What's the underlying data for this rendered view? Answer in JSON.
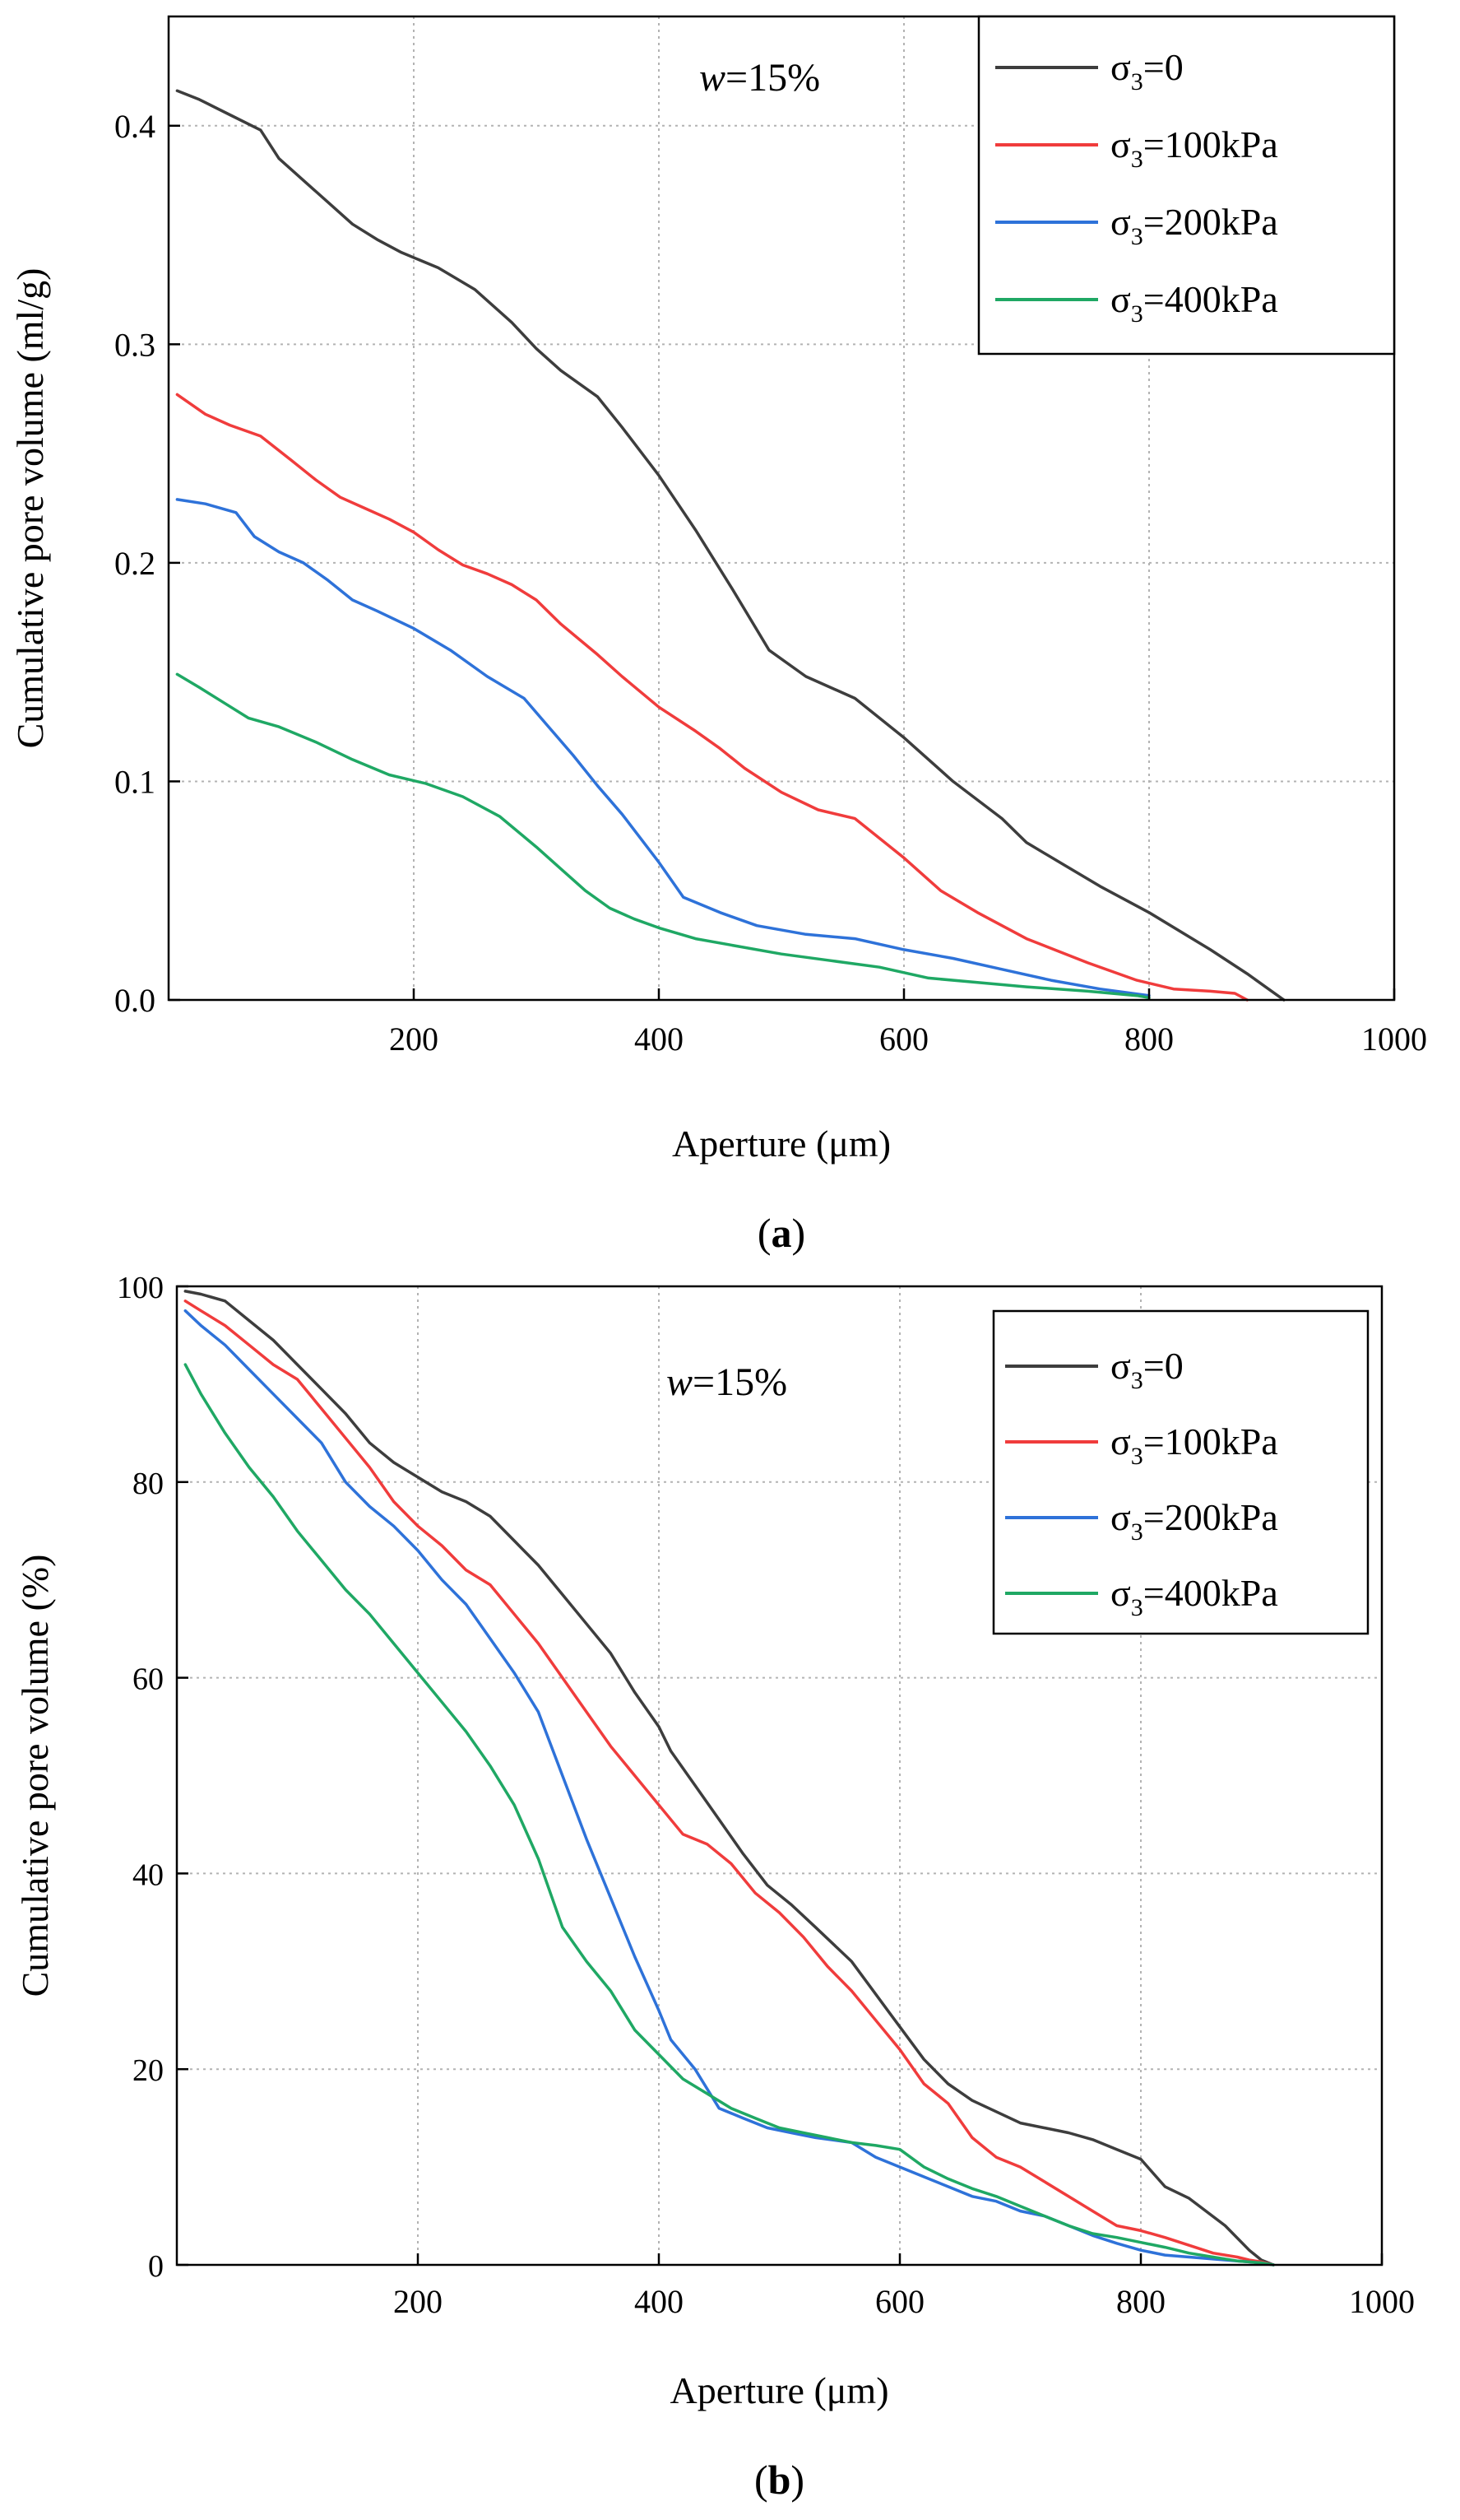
{
  "colors": {
    "s0": "#3d3d3d",
    "s100": "#f03c3c",
    "s200": "#2e72d9",
    "s400": "#1fa864",
    "grid": "#b3b3b3",
    "axis": "#000000"
  },
  "chart_data": [
    {
      "type": "line",
      "panel_label": "a",
      "annotation": {
        "w_sym": "w",
        "w_val": "=15%"
      },
      "xlabel": "Aperture (μm)",
      "ylabel": "Cumulative pore volume (ml/g)",
      "xlim": [
        0,
        1000
      ],
      "ylim": [
        0,
        0.45
      ],
      "xticks": [
        200,
        400,
        600,
        800,
        1000
      ],
      "xtick_labels": [
        "200",
        "400",
        "600",
        "800",
        "1000"
      ],
      "yticks": [
        0,
        0.1,
        0.2,
        0.3,
        0.4
      ],
      "ytick_labels": [
        "0.0",
        "0.1",
        "0.2",
        "0.3",
        "0.4"
      ],
      "grid": true,
      "legend_position": "top-right",
      "series": [
        {
          "name": "σ₃=0",
          "label": {
            "sym": "σ",
            "sub": "3",
            "rest": "=0"
          },
          "color_key": "s0",
          "x": [
            7,
            25,
            50,
            75,
            90,
            110,
            130,
            150,
            170,
            190,
            220,
            250,
            280,
            300,
            320,
            350,
            370,
            400,
            430,
            460,
            490,
            520,
            560,
            600,
            640,
            680,
            700,
            730,
            760,
            800,
            850,
            880,
            900,
            910
          ],
          "y": [
            0.416,
            0.412,
            0.405,
            0.398,
            0.385,
            0.375,
            0.365,
            0.355,
            0.348,
            0.342,
            0.335,
            0.325,
            0.31,
            0.298,
            0.288,
            0.276,
            0.262,
            0.24,
            0.215,
            0.188,
            0.16,
            0.148,
            0.138,
            0.12,
            0.1,
            0.083,
            0.072,
            0.062,
            0.052,
            0.04,
            0.023,
            0.012,
            0.004,
            0.0
          ]
        },
        {
          "name": "σ₃=100kPa",
          "label": {
            "sym": "σ",
            "sub": "3",
            "rest": "=100kPa"
          },
          "color_key": "s100",
          "x": [
            7,
            30,
            50,
            75,
            100,
            120,
            140,
            160,
            180,
            200,
            220,
            240,
            260,
            280,
            300,
            320,
            350,
            370,
            400,
            430,
            450,
            470,
            500,
            530,
            560,
            580,
            600,
            630,
            660,
            700,
            750,
            790,
            820,
            850,
            870,
            880
          ],
          "y": [
            0.277,
            0.268,
            0.263,
            0.258,
            0.247,
            0.238,
            0.23,
            0.225,
            0.22,
            0.214,
            0.206,
            0.199,
            0.195,
            0.19,
            0.183,
            0.172,
            0.158,
            0.148,
            0.134,
            0.123,
            0.115,
            0.106,
            0.095,
            0.087,
            0.083,
            0.074,
            0.065,
            0.05,
            0.04,
            0.028,
            0.017,
            0.009,
            0.005,
            0.004,
            0.003,
            0.0
          ]
        },
        {
          "name": "σ₃=200kPa",
          "label": {
            "sym": "σ",
            "sub": "3",
            "rest": "=200kPa"
          },
          "color_key": "s200",
          "x": [
            7,
            30,
            55,
            70,
            90,
            110,
            130,
            150,
            170,
            200,
            230,
            260,
            290,
            310,
            330,
            350,
            370,
            400,
            420,
            450,
            480,
            520,
            560,
            600,
            640,
            680,
            720,
            760,
            800
          ],
          "y": [
            0.229,
            0.227,
            0.223,
            0.212,
            0.205,
            0.2,
            0.192,
            0.183,
            0.178,
            0.17,
            0.16,
            0.148,
            0.138,
            0.125,
            0.112,
            0.098,
            0.085,
            0.063,
            0.047,
            0.04,
            0.034,
            0.03,
            0.028,
            0.023,
            0.019,
            0.014,
            0.009,
            0.005,
            0.002
          ]
        },
        {
          "name": "σ₃=400kPa",
          "label": {
            "sym": "σ",
            "sub": "3",
            "rest": "=400kPa"
          },
          "color_key": "s400",
          "x": [
            7,
            25,
            45,
            65,
            90,
            120,
            150,
            180,
            210,
            240,
            270,
            300,
            320,
            340,
            360,
            380,
            400,
            430,
            460,
            500,
            540,
            580,
            620,
            660,
            700,
            750,
            790,
            800
          ],
          "y": [
            0.149,
            0.143,
            0.136,
            0.129,
            0.125,
            0.118,
            0.11,
            0.103,
            0.099,
            0.093,
            0.084,
            0.07,
            0.06,
            0.05,
            0.042,
            0.037,
            0.033,
            0.028,
            0.025,
            0.021,
            0.018,
            0.015,
            0.01,
            0.008,
            0.006,
            0.004,
            0.002,
            0.001
          ]
        }
      ]
    },
    {
      "type": "line",
      "panel_label": "b",
      "annotation": {
        "w_sym": "w",
        "w_val": "=15%"
      },
      "xlabel": "Aperture (μm)",
      "ylabel": "Cumulative pore volume (%)",
      "xlim": [
        0,
        1000
      ],
      "ylim": [
        0,
        100
      ],
      "xticks": [
        200,
        400,
        600,
        800,
        1000
      ],
      "xtick_labels": [
        "200",
        "400",
        "600",
        "800",
        "1000"
      ],
      "yticks": [
        0,
        20,
        40,
        60,
        80,
        100
      ],
      "ytick_labels": [
        "0",
        "20",
        "40",
        "60",
        "80",
        "100"
      ],
      "grid": true,
      "legend_position": "top-right",
      "series": [
        {
          "name": "σ₃=0",
          "label": {
            "sym": "σ",
            "sub": "3",
            "rest": "=0"
          },
          "color_key": "s0",
          "x": [
            7,
            20,
            40,
            60,
            80,
            100,
            120,
            140,
            160,
            180,
            200,
            220,
            240,
            260,
            280,
            300,
            320,
            340,
            360,
            380,
            400,
            410,
            430,
            450,
            470,
            490,
            510,
            530,
            560,
            590,
            620,
            640,
            660,
            700,
            740,
            760,
            780,
            800,
            820,
            840,
            870,
            890,
            900,
            910
          ],
          "y": [
            99.5,
            99.2,
            98.5,
            96.5,
            94.5,
            92.0,
            89.5,
            87.0,
            84.0,
            82.0,
            80.5,
            79.0,
            78.0,
            76.5,
            74.0,
            71.5,
            68.5,
            65.5,
            62.5,
            58.5,
            55.0,
            52.5,
            49.0,
            45.5,
            42.0,
            38.8,
            36.8,
            34.5,
            31.0,
            26.0,
            21.0,
            18.5,
            16.8,
            14.5,
            13.5,
            12.8,
            11.8,
            10.8,
            8.0,
            6.8,
            4.0,
            1.5,
            0.5,
            0.0
          ]
        },
        {
          "name": "σ₃=100kPa",
          "label": {
            "sym": "σ",
            "sub": "3",
            "rest": "=100kPa"
          },
          "color_key": "s100",
          "x": [
            7,
            20,
            40,
            60,
            80,
            100,
            120,
            140,
            160,
            180,
            200,
            220,
            240,
            260,
            280,
            300,
            320,
            340,
            360,
            380,
            400,
            420,
            440,
            460,
            480,
            500,
            520,
            540,
            560,
            580,
            600,
            620,
            640,
            660,
            680,
            700,
            720,
            740,
            760,
            780,
            800,
            820,
            840,
            860,
            880,
            890,
            900,
            910
          ],
          "y": [
            98.5,
            97.5,
            96.0,
            94.0,
            92.0,
            90.5,
            87.5,
            84.5,
            81.5,
            78.0,
            75.5,
            73.5,
            71.0,
            69.5,
            66.5,
            63.5,
            60.0,
            56.5,
            53.0,
            50.0,
            47.0,
            44.0,
            43.0,
            41.0,
            38.0,
            36.0,
            33.5,
            30.5,
            28.0,
            25.0,
            22.0,
            18.5,
            16.5,
            13.0,
            11.0,
            10.0,
            8.5,
            7.0,
            5.5,
            4.0,
            3.5,
            2.8,
            2.0,
            1.2,
            0.8,
            0.5,
            0.3,
            0.0
          ]
        },
        {
          "name": "σ₃=200kPa",
          "label": {
            "sym": "σ",
            "sub": "3",
            "rest": "=200kPa"
          },
          "color_key": "s200",
          "x": [
            7,
            20,
            40,
            60,
            80,
            100,
            120,
            140,
            160,
            180,
            200,
            220,
            240,
            260,
            280,
            300,
            320,
            340,
            360,
            380,
            400,
            410,
            430,
            450,
            470,
            490,
            510,
            530,
            560,
            580,
            600,
            620,
            640,
            660,
            680,
            700,
            720,
            740,
            760,
            780,
            800,
            820,
            840,
            860,
            880,
            900,
            910
          ],
          "y": [
            97.5,
            96.0,
            94.0,
            91.5,
            89.0,
            86.5,
            84.0,
            80.0,
            77.5,
            75.5,
            73.0,
            70.0,
            67.5,
            64.0,
            60.5,
            56.5,
            50.0,
            43.5,
            37.5,
            31.5,
            26.0,
            23.0,
            20.0,
            16.0,
            15.0,
            14.0,
            13.5,
            13.0,
            12.5,
            11.0,
            10.0,
            9.0,
            8.0,
            7.0,
            6.5,
            5.5,
            5.0,
            4.0,
            3.0,
            2.2,
            1.5,
            1.0,
            0.8,
            0.6,
            0.4,
            0.2,
            0.0
          ]
        },
        {
          "name": "σ₃=400kPa",
          "label": {
            "sym": "σ",
            "sub": "3",
            "rest": "=400kPa"
          },
          "color_key": "s400",
          "x": [
            7,
            20,
            40,
            60,
            80,
            100,
            120,
            140,
            160,
            180,
            200,
            220,
            240,
            260,
            280,
            300,
            320,
            340,
            360,
            380,
            400,
            420,
            440,
            460,
            480,
            500,
            520,
            540,
            560,
            580,
            600,
            620,
            640,
            660,
            680,
            700,
            720,
            740,
            760,
            780,
            800,
            820,
            840,
            860,
            880,
            900,
            910
          ],
          "y": [
            92.0,
            89.0,
            85.0,
            81.5,
            78.5,
            75.0,
            72.0,
            69.0,
            66.5,
            63.5,
            60.5,
            57.5,
            54.5,
            51.0,
            47.0,
            41.5,
            34.5,
            31.0,
            28.0,
            24.0,
            21.5,
            19.0,
            17.5,
            16.0,
            15.0,
            14.0,
            13.5,
            13.0,
            12.5,
            12.2,
            11.8,
            10.0,
            8.8,
            7.8,
            7.0,
            6.0,
            5.0,
            4.0,
            3.2,
            2.8,
            2.3,
            1.8,
            1.2,
            0.8,
            0.4,
            0.2,
            0.0
          ]
        }
      ]
    }
  ]
}
